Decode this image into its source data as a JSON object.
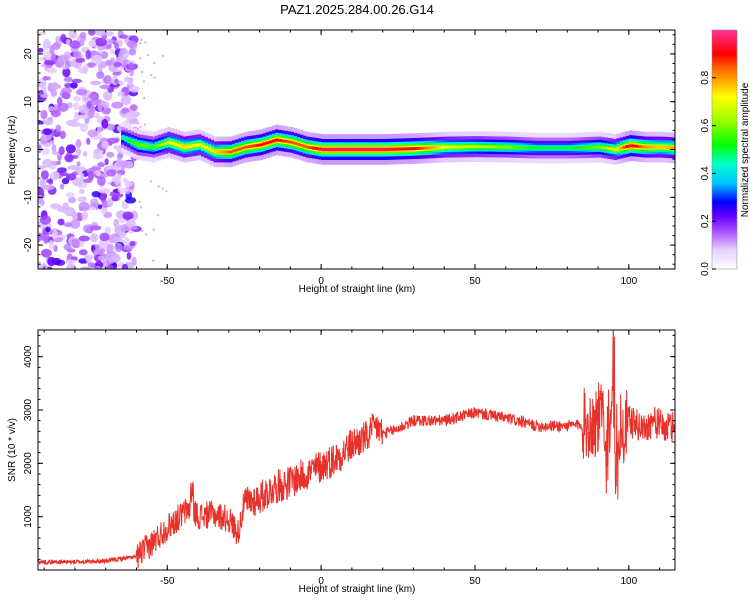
{
  "title": "PAZ1.2025.284.00.26.G14",
  "chart_data": [
    {
      "type": "heatmap",
      "name": "spectrogram",
      "xlabel": "Height of straight line (km)",
      "ylabel": "Frequency (Hz)",
      "xlim": [
        -92,
        115
      ],
      "ylim": [
        -25,
        25
      ],
      "xticks": [
        -50,
        0,
        50,
        100
      ],
      "xtick_labels": [
        "-50",
        "0",
        "50",
        "100"
      ],
      "yticks": [
        -20,
        -10,
        0,
        10,
        20
      ],
      "ytick_labels": [
        "-20",
        "-10",
        "0",
        "10",
        "20"
      ],
      "ridge": {
        "x": [
          -65,
          -60,
          -55,
          -50,
          -45,
          -40,
          -35,
          -30,
          -25,
          -20,
          -15,
          -10,
          -5,
          0,
          10,
          20,
          30,
          40,
          50,
          60,
          70,
          80,
          90,
          95,
          100,
          105,
          110,
          115
        ],
        "freq": [
          2.5,
          1.0,
          0.5,
          1.5,
          0.5,
          1.0,
          -0.5,
          -0.5,
          0.5,
          1.0,
          2.0,
          1.5,
          0.5,
          0.0,
          0.0,
          0.0,
          0.2,
          0.5,
          0.6,
          0.5,
          0.3,
          0.3,
          0.5,
          0.0,
          0.8,
          0.5,
          0.5,
          0.3
        ],
        "amp": [
          0.45,
          0.6,
          0.55,
          0.7,
          0.75,
          0.7,
          0.75,
          0.85,
          0.85,
          0.9,
          0.9,
          0.85,
          0.85,
          0.95,
          0.95,
          0.95,
          0.9,
          0.7,
          0.65,
          0.6,
          0.5,
          0.5,
          0.6,
          0.7,
          0.95,
          0.8,
          0.75,
          0.8
        ]
      },
      "noise_region_x": [
        -92,
        -60
      ]
    },
    {
      "type": "line",
      "name": "snr",
      "xlabel": "Height of straight line (km)",
      "ylabel": "SNR (10 * v/v)",
      "xlim": [
        -92,
        115
      ],
      "ylim": [
        0,
        4500
      ],
      "xticks": [
        -50,
        0,
        50,
        100
      ],
      "xtick_labels": [
        "-50",
        "0",
        "50",
        "100"
      ],
      "yticks": [
        1000,
        2000,
        3000,
        4000
      ],
      "ytick_labels": [
        "1000",
        "2000",
        "3000",
        "4000"
      ],
      "color": "#e8312a",
      "series": [
        {
          "name": "SNR",
          "x": [
            -92,
            -80,
            -70,
            -60,
            -55,
            -50,
            -45,
            -42,
            -40,
            -35,
            -30,
            -27,
            -25,
            -20,
            -15,
            -10,
            -5,
            0,
            5,
            10,
            15,
            18,
            20,
            25,
            30,
            40,
            50,
            60,
            70,
            80,
            88,
            92,
            94,
            96,
            98,
            100,
            105,
            108,
            112,
            115
          ],
          "y": [
            150,
            150,
            170,
            250,
            500,
            800,
            1050,
            1200,
            1000,
            1050,
            950,
            700,
            1250,
            1350,
            1550,
            1650,
            1800,
            1950,
            2100,
            2350,
            2500,
            2700,
            2550,
            2650,
            2800,
            2800,
            2950,
            2850,
            2700,
            2700,
            2750,
            2900,
            2600,
            2800,
            2500,
            2800,
            2650,
            2800,
            2650,
            2700
          ]
        }
      ]
    },
    {
      "type": "colorbar",
      "name": "colorbar",
      "label": "Normalized spectral amplitude",
      "range": [
        0,
        1
      ],
      "ticks": [
        0.0,
        0.2,
        0.4,
        0.6,
        0.8
      ],
      "tick_labels": [
        "0.0",
        "0.2",
        "0.4",
        "0.6",
        "0.8"
      ],
      "colormap": [
        {
          "v": 0.0,
          "c": "#ffffff"
        },
        {
          "v": 0.08,
          "c": "#e6d0ff"
        },
        {
          "v": 0.16,
          "c": "#a64dff"
        },
        {
          "v": 0.22,
          "c": "#6600ff"
        },
        {
          "v": 0.28,
          "c": "#0000ff"
        },
        {
          "v": 0.36,
          "c": "#00c8ff"
        },
        {
          "v": 0.44,
          "c": "#00ffcc"
        },
        {
          "v": 0.52,
          "c": "#00ff00"
        },
        {
          "v": 0.62,
          "c": "#9cff00"
        },
        {
          "v": 0.72,
          "c": "#ffff00"
        },
        {
          "v": 0.82,
          "c": "#ff8000"
        },
        {
          "v": 0.9,
          "c": "#ff0000"
        },
        {
          "v": 1.0,
          "c": "#ff3399"
        }
      ]
    }
  ]
}
